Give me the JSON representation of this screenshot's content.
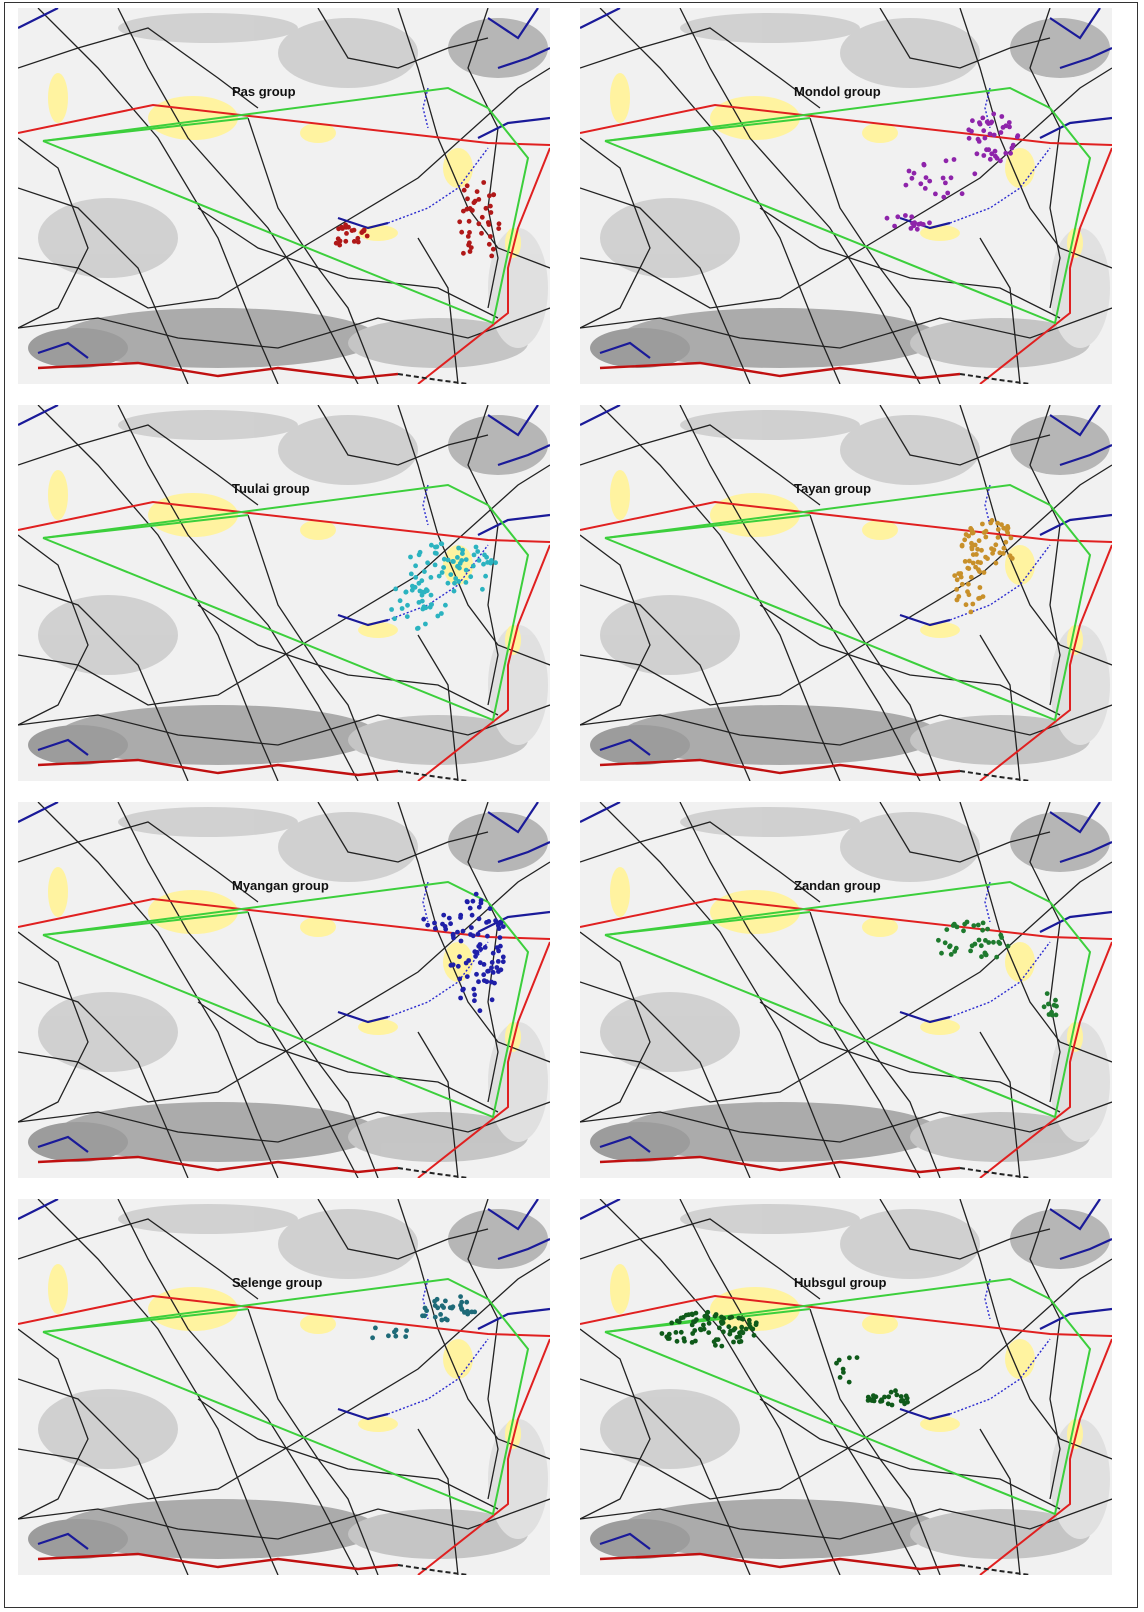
{
  "panels": [
    {
      "label": "Pas group",
      "color": "#b01818"
    },
    {
      "label": "Mondol group",
      "color": "#8e24aa"
    },
    {
      "label": "Tuulai group",
      "color": "#2bb3c0"
    },
    {
      "label": "Tayan group",
      "color": "#c8902a"
    },
    {
      "label": "Myangan group",
      "color": "#1f1fa8"
    },
    {
      "label": "Zandan group",
      "color": "#1e7a2e"
    },
    {
      "label": "Selenge group",
      "color": "#1e6a78"
    },
    {
      "label": "Hubsgul group",
      "color": "#0f5a1a"
    }
  ]
}
